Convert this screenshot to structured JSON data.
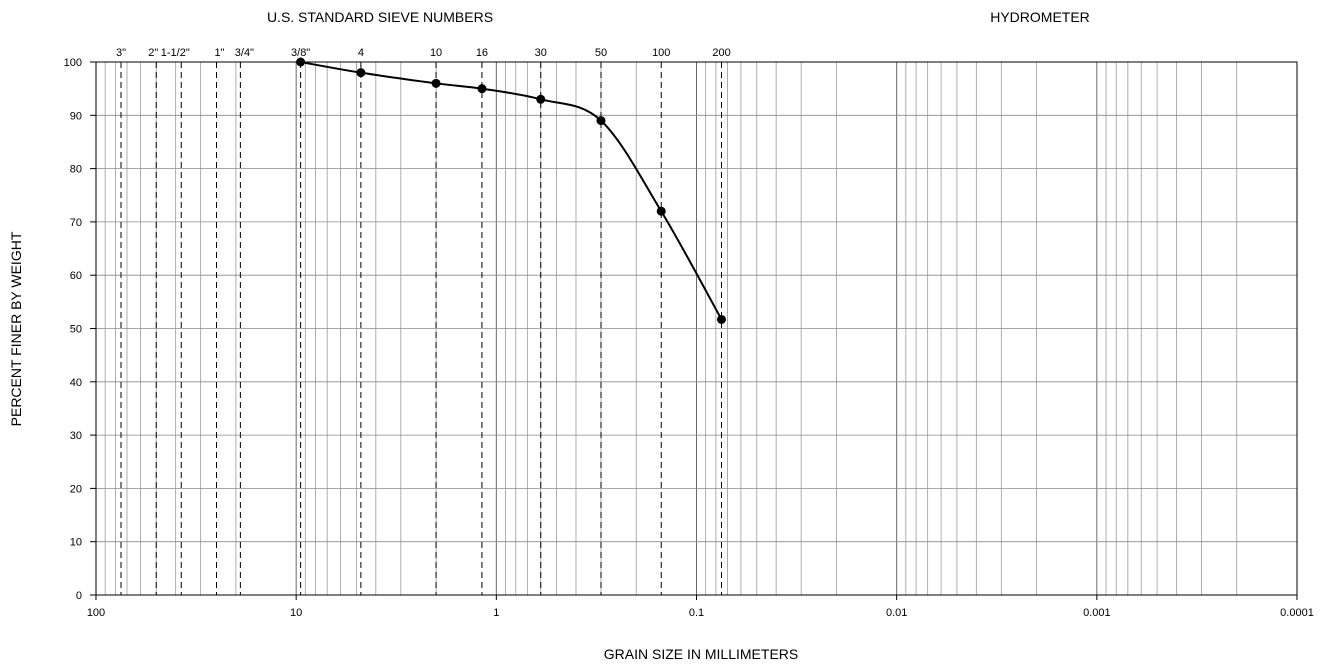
{
  "chart_data": {
    "type": "line",
    "title_left": "U.S. STANDARD SIEVE NUMBERS",
    "title_right": "HYDROMETER",
    "xlabel": "GRAIN SIZE IN MILLIMETERS",
    "ylabel": "PERCENT FINER BY WEIGHT",
    "x_scale": "log",
    "x_reversed": true,
    "xlim": [
      100,
      0.0001
    ],
    "ylim": [
      0,
      100
    ],
    "grid": true,
    "x_ticks": [
      {
        "value": 100,
        "label": "100"
      },
      {
        "value": 10,
        "label": "10"
      },
      {
        "value": 1,
        "label": "1"
      },
      {
        "value": 0.1,
        "label": "0.1"
      },
      {
        "value": 0.01,
        "label": "0.01"
      },
      {
        "value": 0.001,
        "label": "0.001"
      },
      {
        "value": 0.0001,
        "label": "0.0001"
      }
    ],
    "y_ticks": [
      0,
      10,
      20,
      30,
      40,
      50,
      60,
      70,
      80,
      90,
      100
    ],
    "sieves": [
      {
        "label": "3\"",
        "size": 75
      },
      {
        "label": "2\"",
        "size": 50
      },
      {
        "label": "1-1/2\"",
        "size": 37.5
      },
      {
        "label": "1\"",
        "size": 25
      },
      {
        "label": "3/4\"",
        "size": 19
      },
      {
        "label": "3/8\"",
        "size": 9.5
      },
      {
        "label": "4",
        "size": 4.75
      },
      {
        "label": "10",
        "size": 2.0
      },
      {
        "label": "16",
        "size": 1.18
      },
      {
        "label": "30",
        "size": 0.6
      },
      {
        "label": "50",
        "size": 0.3
      },
      {
        "label": "100",
        "size": 0.15
      },
      {
        "label": "200",
        "size": 0.075
      }
    ],
    "series": [
      {
        "x": [
          9.5,
          4.75,
          2.0,
          1.18,
          0.6,
          0.3,
          0.15,
          0.075
        ],
        "y": [
          100,
          98,
          96,
          95,
          93,
          89,
          72,
          51.7
        ]
      }
    ]
  }
}
